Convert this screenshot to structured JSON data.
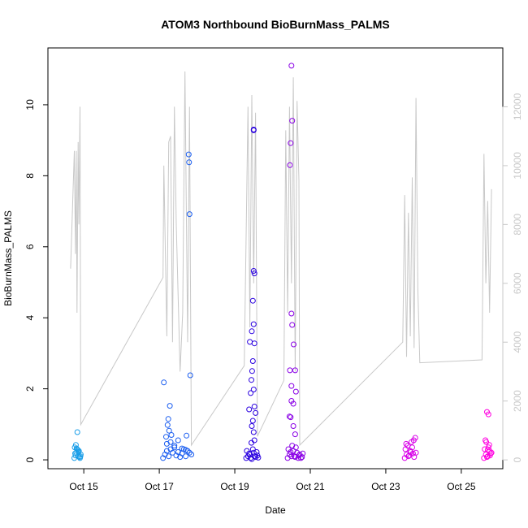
{
  "chart_data": {
    "type": "scatter",
    "title": "ATOM3 Northbound BioBurnMass_PALMS",
    "xlabel": "Date",
    "ylabel": "BioBurnMass_PALMS",
    "x_tick_labels": [
      "Oct 15",
      "Oct 17",
      "Oct 19",
      "Oct 21",
      "Oct 23",
      "Oct 25"
    ],
    "x_tick_values": [
      15,
      17,
      19,
      21,
      23,
      25
    ],
    "xlim": [
      14.05,
      26.1
    ],
    "ylim": [
      -0.25,
      11.6
    ],
    "y_ticks": [
      0,
      2,
      4,
      6,
      8,
      10
    ],
    "secondary_axis": {
      "description": "right axis, grey line (unlabeled)",
      "ylim": [
        -300,
        14000
      ],
      "ticks": [
        0,
        2000,
        4000,
        6000,
        8000,
        10000,
        12000
      ],
      "color": "#c8c8c8"
    },
    "point_style": "open circles, colour from cyan (earliest) through blue and purple to magenta (latest)",
    "series": [
      {
        "color": "#1a9ee8",
        "x": [
          14.75,
          14.78,
          14.8,
          14.82,
          14.85,
          14.87,
          14.9,
          14.92,
          14.76,
          14.79,
          14.83,
          14.86,
          14.89,
          14.77,
          14.84,
          14.91,
          14.81
        ],
        "y": [
          0.05,
          0.12,
          0.2,
          0.3,
          0.1,
          0.25,
          0.05,
          0.15,
          0.35,
          0.42,
          0.78,
          0.22,
          0.08,
          0.18,
          0.28,
          0.1,
          0.32
        ]
      },
      {
        "color": "#1b5ef0",
        "x": [
          17.1,
          17.15,
          17.2,
          17.25,
          17.3,
          17.35,
          17.4,
          17.45,
          17.5,
          17.55,
          17.6,
          17.65,
          17.7,
          17.75,
          17.8,
          17.85,
          17.2,
          17.3,
          17.4,
          17.5,
          17.6,
          17.7,
          17.12,
          17.28,
          17.22,
          17.26,
          17.24,
          17.18,
          17.32,
          17.78,
          17.79,
          17.8,
          17.82,
          17.72
        ],
        "y": [
          0.05,
          0.15,
          0.25,
          0.1,
          0.3,
          0.2,
          0.35,
          0.12,
          0.22,
          0.08,
          0.18,
          0.3,
          0.1,
          0.25,
          0.2,
          0.15,
          0.45,
          0.5,
          0.4,
          0.55,
          0.32,
          0.28,
          2.18,
          1.52,
          0.98,
          0.82,
          1.15,
          0.65,
          0.7,
          8.6,
          8.38,
          6.92,
          2.38,
          0.68
        ]
      },
      {
        "color": "#2a00e0",
        "x": [
          19.3,
          19.35,
          19.4,
          19.45,
          19.5,
          19.55,
          19.6,
          19.32,
          19.38,
          19.42,
          19.48,
          19.52,
          19.58,
          19.62,
          19.5,
          19.5,
          19.52,
          19.5,
          19.48,
          19.5,
          19.45,
          19.4,
          19.52,
          19.48,
          19.46,
          19.44,
          19.5,
          19.42,
          19.52,
          19.38,
          19.55,
          19.48,
          19.45,
          19.5,
          19.52,
          19.44
        ],
        "y": [
          0.05,
          0.1,
          0.15,
          0.02,
          0.2,
          0.08,
          0.12,
          0.25,
          0.18,
          0.05,
          0.3,
          0.1,
          0.22,
          0.06,
          9.3,
          9.28,
          5.25,
          5.32,
          4.48,
          3.82,
          3.62,
          3.32,
          3.28,
          2.78,
          2.5,
          2.25,
          1.98,
          1.88,
          1.5,
          1.42,
          1.32,
          1.1,
          0.95,
          0.78,
          0.55,
          0.48
        ]
      },
      {
        "color": "#8a00e6",
        "x": [
          20.4,
          20.45,
          20.5,
          20.55,
          20.6,
          20.65,
          20.7,
          20.75,
          20.8,
          20.42,
          20.48,
          20.52,
          20.58,
          20.62,
          20.68,
          20.72,
          20.78,
          20.5,
          20.52,
          20.48,
          20.46,
          20.5,
          20.52,
          20.56,
          20.46,
          20.5,
          20.6,
          20.62,
          20.5,
          20.55,
          20.45,
          20.48,
          20.55,
          20.6
        ],
        "y": [
          0.05,
          0.15,
          0.1,
          0.25,
          0.08,
          0.2,
          0.12,
          0.05,
          0.18,
          0.3,
          0.22,
          0.4,
          0.1,
          0.35,
          0.05,
          0.15,
          0.08,
          11.1,
          9.55,
          8.92,
          8.3,
          4.12,
          3.8,
          3.25,
          2.52,
          2.08,
          2.52,
          1.92,
          1.66,
          1.58,
          1.22,
          1.2,
          0.95,
          0.72
        ]
      },
      {
        "color": "#d800e8",
        "x": [
          23.5,
          23.55,
          23.6,
          23.65,
          23.7,
          23.75,
          23.8,
          23.52,
          23.58,
          23.62,
          23.68,
          23.72,
          23.78,
          23.54,
          23.66,
          23.74
        ],
        "y": [
          0.05,
          0.15,
          0.1,
          0.25,
          0.35,
          0.08,
          0.2,
          0.3,
          0.4,
          0.12,
          0.5,
          0.18,
          0.62,
          0.45,
          0.22,
          0.55
        ]
      },
      {
        "color": "#ff00e0",
        "x": [
          25.6,
          25.65,
          25.7,
          25.75,
          25.8,
          25.62,
          25.68,
          25.72,
          25.78,
          25.64,
          25.74,
          25.66,
          25.7,
          25.76,
          25.68,
          25.72
        ],
        "y": [
          0.05,
          0.15,
          0.1,
          0.25,
          0.2,
          0.3,
          0.08,
          0.35,
          0.18,
          0.55,
          0.42,
          0.5,
          0.28,
          0.12,
          1.35,
          1.28
        ]
      }
    ],
    "secondary_series": {
      "color": "#c8c8c8",
      "x": [
        14.65,
        14.75,
        14.78,
        14.8,
        14.82,
        14.85,
        14.87,
        14.9,
        14.92,
        17.1,
        17.12,
        17.2,
        17.25,
        17.3,
        17.35,
        17.4,
        17.45,
        17.55,
        17.62,
        17.68,
        17.75,
        17.8,
        17.85,
        19.25,
        19.35,
        19.4,
        19.45,
        19.5,
        19.55,
        19.6,
        20.3,
        20.35,
        20.4,
        20.45,
        20.5,
        20.55,
        20.6,
        20.65,
        20.7,
        20.72,
        23.45,
        23.5,
        23.55,
        23.6,
        23.65,
        23.7,
        23.75,
        23.8,
        23.85,
        23.9,
        25.55,
        25.6,
        25.65,
        25.7,
        25.75,
        25.8
      ],
      "y": [
        6500,
        10500,
        7000,
        10500,
        5000,
        10800,
        8000,
        12000,
        1200,
        6200,
        10000,
        4200,
        10800,
        11000,
        4000,
        12000,
        8000,
        3000,
        5000,
        13200,
        4000,
        12000,
        500,
        3200,
        12000,
        4500,
        12400,
        6000,
        11800,
        800,
        2700,
        11200,
        5000,
        12000,
        6000,
        13000,
        3000,
        12200,
        9500,
        500,
        4000,
        9000,
        3500,
        8400,
        4200,
        9600,
        3800,
        12300,
        5800,
        3300,
        3400,
        10400,
        6000,
        8800,
        5000,
        9200
      ]
    }
  }
}
